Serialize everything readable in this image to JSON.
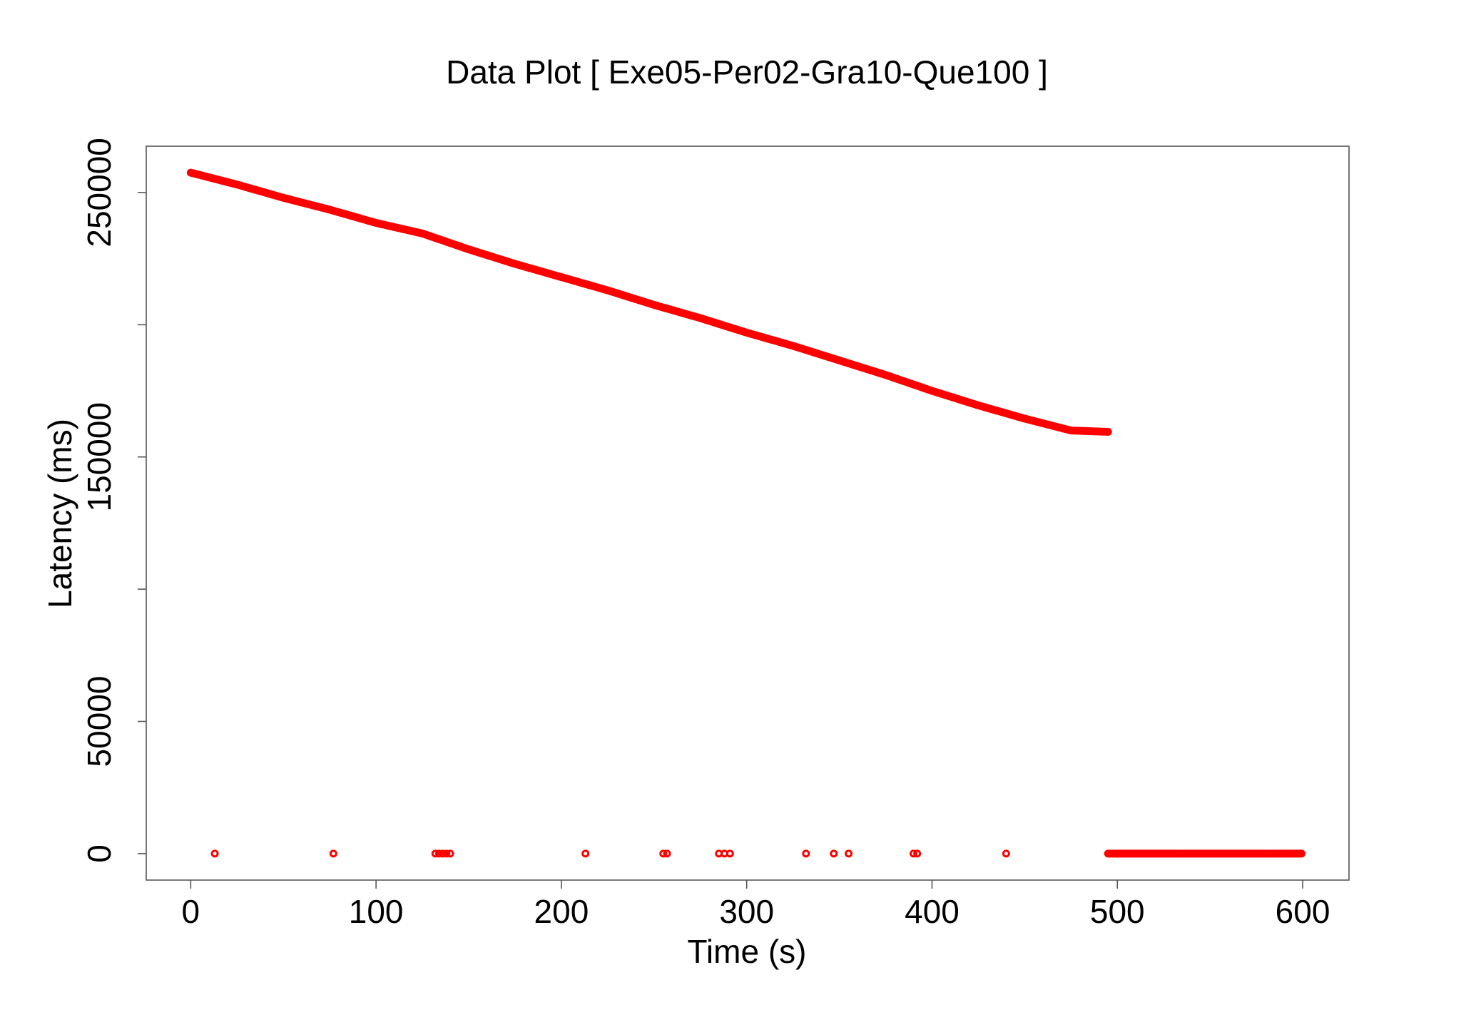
{
  "chart_data": {
    "type": "scatter",
    "title": "Data Plot [ Exe05-Per02-Gra10-Que100 ]",
    "xlabel": "Time (s)",
    "ylabel": "Latency (ms)",
    "xlim": [
      -24,
      625
    ],
    "ylim": [
      -10000,
      267500
    ],
    "x_ticks": [
      0,
      100,
      200,
      300,
      400,
      500,
      600
    ],
    "y_ticks": [
      0,
      50000,
      100000,
      150000,
      200000,
      250000
    ],
    "y_tick_labels": [
      "0",
      "50000",
      "",
      "150000",
      "",
      "250000"
    ],
    "grid": false,
    "legend": "none",
    "marker": "open-circle",
    "color": "#ff0000",
    "series": [
      {
        "trend_segment": {
          "description_points": [
            [
              0,
              257500
            ],
            [
              25,
              253000
            ],
            [
              50,
              248000
            ],
            [
              75,
              243500
            ],
            [
              100,
              238500
            ],
            [
              125,
              234500
            ],
            [
              150,
              228500
            ],
            [
              175,
              223000
            ],
            [
              200,
              218000
            ],
            [
              225,
              213000
            ],
            [
              250,
              207500
            ],
            [
              275,
              202500
            ],
            [
              300,
              197000
            ],
            [
              325,
              192000
            ],
            [
              350,
              186500
            ],
            [
              375,
              181000
            ],
            [
              400,
              175000
            ],
            [
              425,
              169500
            ],
            [
              450,
              164500
            ],
            [
              475,
              160000
            ],
            [
              495,
              159500
            ]
          ],
          "x_start": 0,
          "x_end": 495
        },
        "tail_segment": {
          "x_start": 495,
          "x_end": 600,
          "y": 0
        },
        "isolated_points": [
          [
            13,
            0
          ],
          [
            77,
            0
          ],
          [
            132,
            0
          ],
          [
            134,
            0
          ],
          [
            136,
            0
          ],
          [
            138,
            0
          ],
          [
            140,
            0
          ],
          [
            213,
            0
          ],
          [
            255,
            0
          ],
          [
            257,
            0
          ],
          [
            285,
            0
          ],
          [
            288,
            0
          ],
          [
            291,
            0
          ],
          [
            332,
            0
          ],
          [
            347,
            0
          ],
          [
            355,
            0
          ],
          [
            390,
            0
          ],
          [
            392,
            0
          ],
          [
            440,
            0
          ]
        ]
      }
    ]
  }
}
